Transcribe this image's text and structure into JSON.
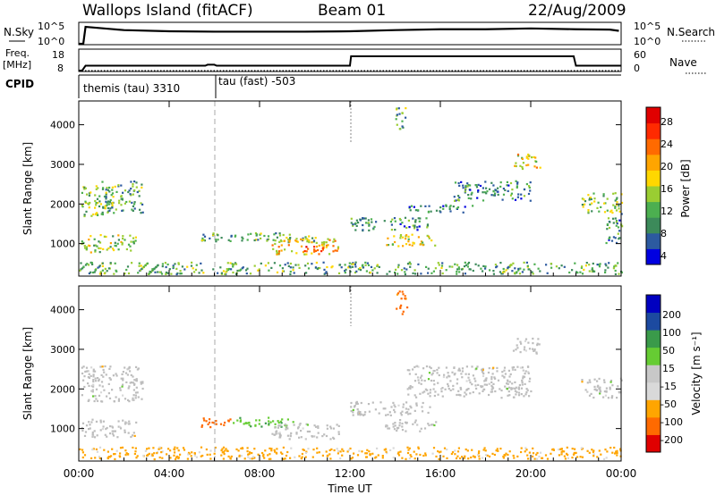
{
  "header": {
    "radar": "Wallops Island (fitACF)",
    "beam": "Beam 01",
    "date": "22/Aug/2009"
  },
  "strip_labels": {
    "nsky": "N.Sky",
    "freq": "Freq.",
    "freq_unit": "[MHz]",
    "cpid": "CPID",
    "nsearch": "N.Search",
    "nave": "Nave"
  },
  "strip_axes": {
    "nsky_ticks": [
      "10^5",
      "10^0"
    ],
    "nsearch_ticks": [
      "10^5",
      "10^0"
    ],
    "freq_ticks": [
      "18",
      "8"
    ],
    "nave_ticks": [
      "60",
      "0"
    ]
  },
  "cpid_labels": [
    "themis (tau) 3310",
    "tau (fast) -503"
  ],
  "panels": {
    "power": {
      "ylabel": "Slant Range [km]",
      "cbar_label": "Power [dB]",
      "cbar_ticks": [
        "28",
        "24",
        "20",
        "16",
        "12",
        "8",
        "4"
      ]
    },
    "velocity": {
      "ylabel": "Slant Range [km]",
      "cbar_label": "Velocity [m s⁻¹]",
      "cbar_ticks": [
        "200",
        "100",
        "50",
        "15",
        "-15",
        "-50",
        "-100",
        "-200"
      ]
    }
  },
  "colors": {
    "power_scale": [
      "#0000e0",
      "#2c5aa0",
      "#3c8a5a",
      "#4caf50",
      "#9acd32",
      "#ffd700",
      "#ffa500",
      "#ff6a00",
      "#ff2a00",
      "#e00000"
    ],
    "velocity_scale": [
      "#e00000",
      "#ff6a00",
      "#ffa500",
      "#d9d9d9",
      "#c8c8c8",
      "#66cc33",
      "#3a9a4a",
      "#1c4aa0",
      "#0000c0"
    ],
    "ground_scatter": "#bdbdbd"
  },
  "chart_data": [
    {
      "type": "line",
      "title": "N.Sky / N.Search",
      "x_range": [
        "00:00",
        "24:00"
      ],
      "y_scale": "log",
      "ylim": [
        1,
        100000
      ],
      "series": [
        {
          "name": "N.Sky",
          "x": [
            0.0,
            0.2,
            0.3,
            2,
            4,
            6,
            8,
            10,
            12,
            14,
            16,
            18,
            20,
            22,
            23.5,
            23.9
          ],
          "values": [
            1,
            1,
            20000,
            3000,
            1500,
            1200,
            1200,
            1200,
            1500,
            3000,
            5000,
            5000,
            8000,
            5000,
            4000,
            2000
          ]
        }
      ]
    },
    {
      "type": "line",
      "title": "Freq. / Nave",
      "x_range": [
        "00:00",
        "24:00"
      ],
      "ylim_left": [
        8,
        18
      ],
      "ylim_right": [
        0,
        60
      ],
      "series": [
        {
          "name": "Freq.",
          "x": [
            0.0,
            0.15,
            0.3,
            5.6,
            5.7,
            6.0,
            6.1,
            12.0,
            12.05,
            21.9,
            22.0,
            24.0
          ],
          "values": [
            8,
            8,
            10.5,
            10.5,
            11,
            11,
            10.5,
            10.5,
            15.3,
            15.3,
            10.5,
            10.5
          ]
        },
        {
          "name": "Nave",
          "x": [
            0,
            24
          ],
          "values": [
            0,
            0
          ]
        }
      ]
    },
    {
      "type": "heatmap",
      "title": "Power",
      "xlabel": "Time UT",
      "ylabel": "Slant Range [km]",
      "x_ticks": [
        "00:00",
        "04:00",
        "08:00",
        "12:00",
        "16:00",
        "20:00",
        "00:00"
      ],
      "x_range_hours": [
        0,
        24
      ],
      "y_ticks": [
        1000,
        2000,
        3000,
        4000
      ],
      "ylim": [
        180,
        4600
      ],
      "color_label": "Power [dB]",
      "color_range": [
        0,
        30
      ],
      "regions": [
        {
          "t0": 0.1,
          "t1": 1.5,
          "r0": 1700,
          "r1": 2500,
          "value": 12
        },
        {
          "t0": 0.1,
          "t1": 2.5,
          "r0": 800,
          "r1": 1250,
          "value": 14
        },
        {
          "t0": 1.0,
          "t1": 2.8,
          "r0": 1800,
          "r1": 2600,
          "value": 10
        },
        {
          "t0": 5.4,
          "t1": 10.5,
          "r0": 1050,
          "r1": 1300,
          "value": 10
        },
        {
          "t0": 8.5,
          "t1": 11.5,
          "r0": 750,
          "r1": 1150,
          "value": 18
        },
        {
          "t0": 9.8,
          "t1": 11.0,
          "r0": 800,
          "r1": 1000,
          "value": 22
        },
        {
          "t0": 0.0,
          "t1": 24.0,
          "r0": 250,
          "r1": 550,
          "value": 10
        },
        {
          "t0": 12.0,
          "t1": 15.5,
          "r0": 1350,
          "r1": 1700,
          "value": 8
        },
        {
          "t0": 13.5,
          "t1": 15.8,
          "r0": 950,
          "r1": 1250,
          "value": 16
        },
        {
          "t0": 14.5,
          "t1": 17.5,
          "r0": 1800,
          "r1": 2000,
          "value": 6
        },
        {
          "t0": 16.5,
          "t1": 20.0,
          "r0": 2100,
          "r1": 2600,
          "value": 8
        },
        {
          "t0": 19.2,
          "t1": 20.4,
          "r0": 2900,
          "r1": 3300,
          "value": 16
        },
        {
          "t0": 22.2,
          "t1": 24.0,
          "r0": 1800,
          "r1": 2300,
          "value": 12
        },
        {
          "t0": 23.3,
          "t1": 24.0,
          "r0": 1000,
          "r1": 1800,
          "value": 8
        },
        {
          "t0": 14.0,
          "t1": 14.5,
          "r0": 3900,
          "r1": 4500,
          "value": 10
        }
      ]
    },
    {
      "type": "heatmap",
      "title": "Velocity",
      "xlabel": "Time UT",
      "ylabel": "Slant Range [km]",
      "x_ticks": [
        "00:00",
        "04:00",
        "08:00",
        "12:00",
        "16:00",
        "20:00",
        "00:00"
      ],
      "x_range_hours": [
        0,
        24
      ],
      "y_ticks": [
        1000,
        2000,
        3000,
        4000
      ],
      "ylim": [
        180,
        4600
      ],
      "color_label": "Velocity [m s⁻¹]",
      "color_range": [
        -200,
        200
      ],
      "regions": [
        {
          "t0": 0.1,
          "t1": 2.8,
          "r0": 1700,
          "r1": 2600,
          "value": 0,
          "ground": true
        },
        {
          "t0": 0.1,
          "t1": 2.5,
          "r0": 800,
          "r1": 1250,
          "value": 0,
          "ground": true
        },
        {
          "t0": 5.4,
          "t1": 6.8,
          "r0": 1050,
          "r1": 1300,
          "value": -80
        },
        {
          "t0": 6.8,
          "t1": 9.5,
          "r0": 1050,
          "r1": 1300,
          "value": 40
        },
        {
          "t0": 8.5,
          "t1": 11.5,
          "r0": 750,
          "r1": 1150,
          "value": 0,
          "ground": true
        },
        {
          "t0": 0.0,
          "t1": 24.0,
          "r0": 250,
          "r1": 550,
          "value": -30
        },
        {
          "t0": 12.0,
          "t1": 15.5,
          "r0": 1350,
          "r1": 1700,
          "value": 0,
          "ground": true
        },
        {
          "t0": 13.5,
          "t1": 15.8,
          "r0": 950,
          "r1": 1250,
          "value": 0,
          "ground": true
        },
        {
          "t0": 14.5,
          "t1": 20.0,
          "r0": 1800,
          "r1": 2600,
          "value": 0,
          "ground": true
        },
        {
          "t0": 19.2,
          "t1": 20.4,
          "r0": 2900,
          "r1": 3300,
          "value": 0,
          "ground": true
        },
        {
          "t0": 22.2,
          "t1": 24.0,
          "r0": 1800,
          "r1": 2300,
          "value": 0,
          "ground": true
        },
        {
          "t0": 14.0,
          "t1": 14.5,
          "r0": 3900,
          "r1": 4500,
          "value": -60
        }
      ]
    }
  ]
}
